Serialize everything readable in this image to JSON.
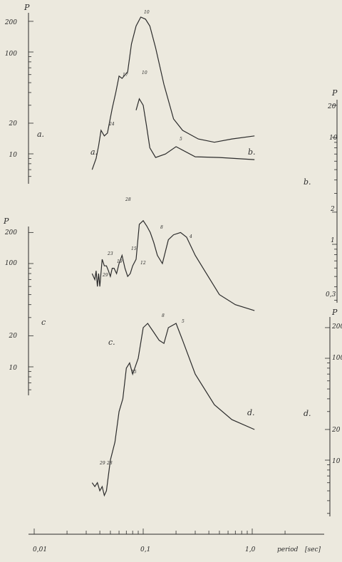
{
  "chart_data": {
    "type": "line",
    "x_scale": "log",
    "x_label": "period",
    "x_unit": "[sec]",
    "x_ticks": [
      0.01,
      0.1,
      1.0
    ],
    "x_tick_labels": [
      "0,01",
      "0,1",
      "1,0"
    ],
    "axes": [
      {
        "name": "a",
        "side": "left",
        "y_label": "P",
        "y_ticks": [
          10,
          20,
          100,
          200
        ],
        "y_tick_labels": [
          "10",
          "20",
          "100",
          "200"
        ],
        "panel_label": "a."
      },
      {
        "name": "b",
        "side": "right",
        "y_label": "P",
        "y_ticks": [
          0.3,
          1,
          2,
          10,
          20
        ],
        "y_tick_labels": [
          "0,3",
          "1",
          "2",
          "10",
          "20"
        ],
        "panel_label": "b."
      },
      {
        "name": "c",
        "side": "left",
        "y_label": "P",
        "y_ticks": [
          10,
          20,
          100,
          200
        ],
        "y_tick_labels": [
          "10",
          "20",
          "100",
          "200"
        ],
        "panel_label": "c"
      },
      {
        "name": "d",
        "side": "right",
        "y_label": "P",
        "y_ticks": [
          10,
          20,
          100,
          200
        ],
        "y_tick_labels": [
          "10",
          "20",
          "100",
          "200"
        ],
        "panel_label": "d."
      }
    ],
    "series": [
      {
        "label": "a.",
        "axis": "a",
        "x": [
          0.034,
          0.037,
          0.039,
          0.041,
          0.044,
          0.047,
          0.052,
          0.056,
          0.06,
          0.064,
          0.072,
          0.078,
          0.086,
          0.095,
          0.105,
          0.115,
          0.13,
          0.155,
          0.19,
          0.23,
          0.32,
          0.45,
          0.65,
          1.05
        ],
        "y": [
          7,
          9,
          12,
          17,
          15,
          16,
          28,
          40,
          58,
          55,
          64,
          120,
          180,
          220,
          210,
          180,
          110,
          48,
          22,
          17,
          14,
          13,
          14,
          15
        ],
        "point_labels": [
          {
            "x": 0.041,
            "y": 17,
            "text": "24"
          },
          {
            "x": 0.06,
            "y": 58,
            "text": "17"
          },
          {
            "x": 0.1,
            "y": 220,
            "text": "10"
          }
        ]
      },
      {
        "label": "b.",
        "axis": "b",
        "x": [
          0.086,
          0.092,
          0.1,
          0.107,
          0.115,
          0.13,
          0.16,
          0.2,
          0.3,
          0.5,
          1.05
        ],
        "y": [
          18,
          23,
          20,
          13,
          8,
          6.5,
          7,
          8.2,
          6.6,
          6.5,
          6.2
        ],
        "point_labels": [
          {
            "x": 0.095,
            "y": 23,
            "text": "10"
          },
          {
            "x": 0.2,
            "y": 8.2,
            "text": "5"
          }
        ]
      },
      {
        "label": "c.",
        "axis": "c",
        "x": [
          0.034,
          0.036,
          0.037,
          0.038,
          0.039,
          0.04,
          0.042,
          0.044,
          0.046,
          0.048,
          0.05,
          0.052,
          0.054,
          0.057,
          0.06,
          0.064,
          0.068,
          0.072,
          0.076,
          0.08,
          0.086,
          0.092,
          0.1,
          0.108,
          0.116,
          0.125,
          0.135,
          0.15,
          0.17,
          0.19,
          0.22,
          0.25,
          0.3,
          0.38,
          0.5,
          0.7,
          1.05
        ],
        "y": [
          80,
          70,
          85,
          60,
          80,
          60,
          110,
          95,
          95,
          85,
          75,
          90,
          90,
          80,
          100,
          120,
          90,
          75,
          80,
          95,
          110,
          240,
          260,
          230,
          200,
          160,
          120,
          100,
          170,
          190,
          200,
          180,
          120,
          80,
          50,
          40,
          35
        ],
        "point_labels": [
          {
            "x": 0.038,
            "y": 80,
            "text": "29"
          },
          {
            "x": 0.042,
            "y": 115,
            "text": "23"
          },
          {
            "x": 0.048,
            "y": 95,
            "text": "19"
          },
          {
            "x": 0.064,
            "y": 120,
            "text": "15"
          },
          {
            "x": 0.078,
            "y": 90,
            "text": "12"
          },
          {
            "x": 0.1,
            "y": 260,
            "text": "8"
          },
          {
            "x": 0.19,
            "y": 200,
            "text": "4"
          }
        ]
      },
      {
        "label": "d.",
        "axis": "d",
        "x": [
          0.034,
          0.036,
          0.038,
          0.04,
          0.042,
          0.044,
          0.046,
          0.05,
          0.055,
          0.06,
          0.065,
          0.07,
          0.075,
          0.08,
          0.09,
          0.1,
          0.11,
          0.125,
          0.14,
          0.155,
          0.17,
          0.2,
          0.23,
          0.3,
          0.45,
          0.65,
          1.05
        ],
        "y": [
          6,
          5.5,
          6,
          5,
          5.5,
          4.5,
          5,
          10,
          15,
          30,
          40,
          80,
          90,
          70,
          100,
          200,
          220,
          180,
          150,
          140,
          200,
          220,
          150,
          70,
          35,
          25,
          20
        ],
        "point_labels": [
          {
            "x": 0.036,
            "y": 6,
            "text": "29"
          },
          {
            "x": 0.04,
            "y": 5.5,
            "text": "28"
          },
          {
            "x": 0.072,
            "y": 85,
            "text": "15"
          },
          {
            "x": 0.11,
            "y": 220,
            "text": "8"
          },
          {
            "x": 0.2,
            "y": 220,
            "text": "5"
          }
        ]
      }
    ],
    "extra_labels": [
      {
        "text": "28",
        "near": "c"
      }
    ]
  }
}
